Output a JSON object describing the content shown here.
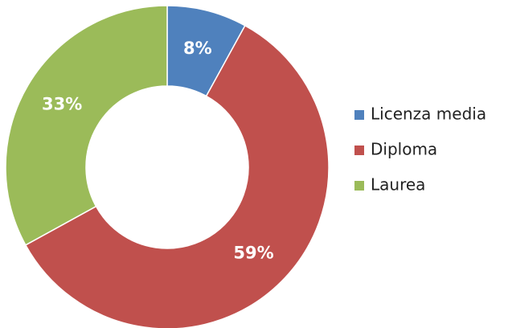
{
  "chart_data": {
    "type": "donut",
    "categories": [
      "Licenza media",
      "Diploma",
      "Laurea"
    ],
    "values": [
      8,
      59,
      33
    ],
    "value_labels": [
      "8%",
      "59%",
      "33%"
    ],
    "colors": [
      "#4f81bd",
      "#c0504d",
      "#9bbb59"
    ],
    "legend": "right"
  }
}
